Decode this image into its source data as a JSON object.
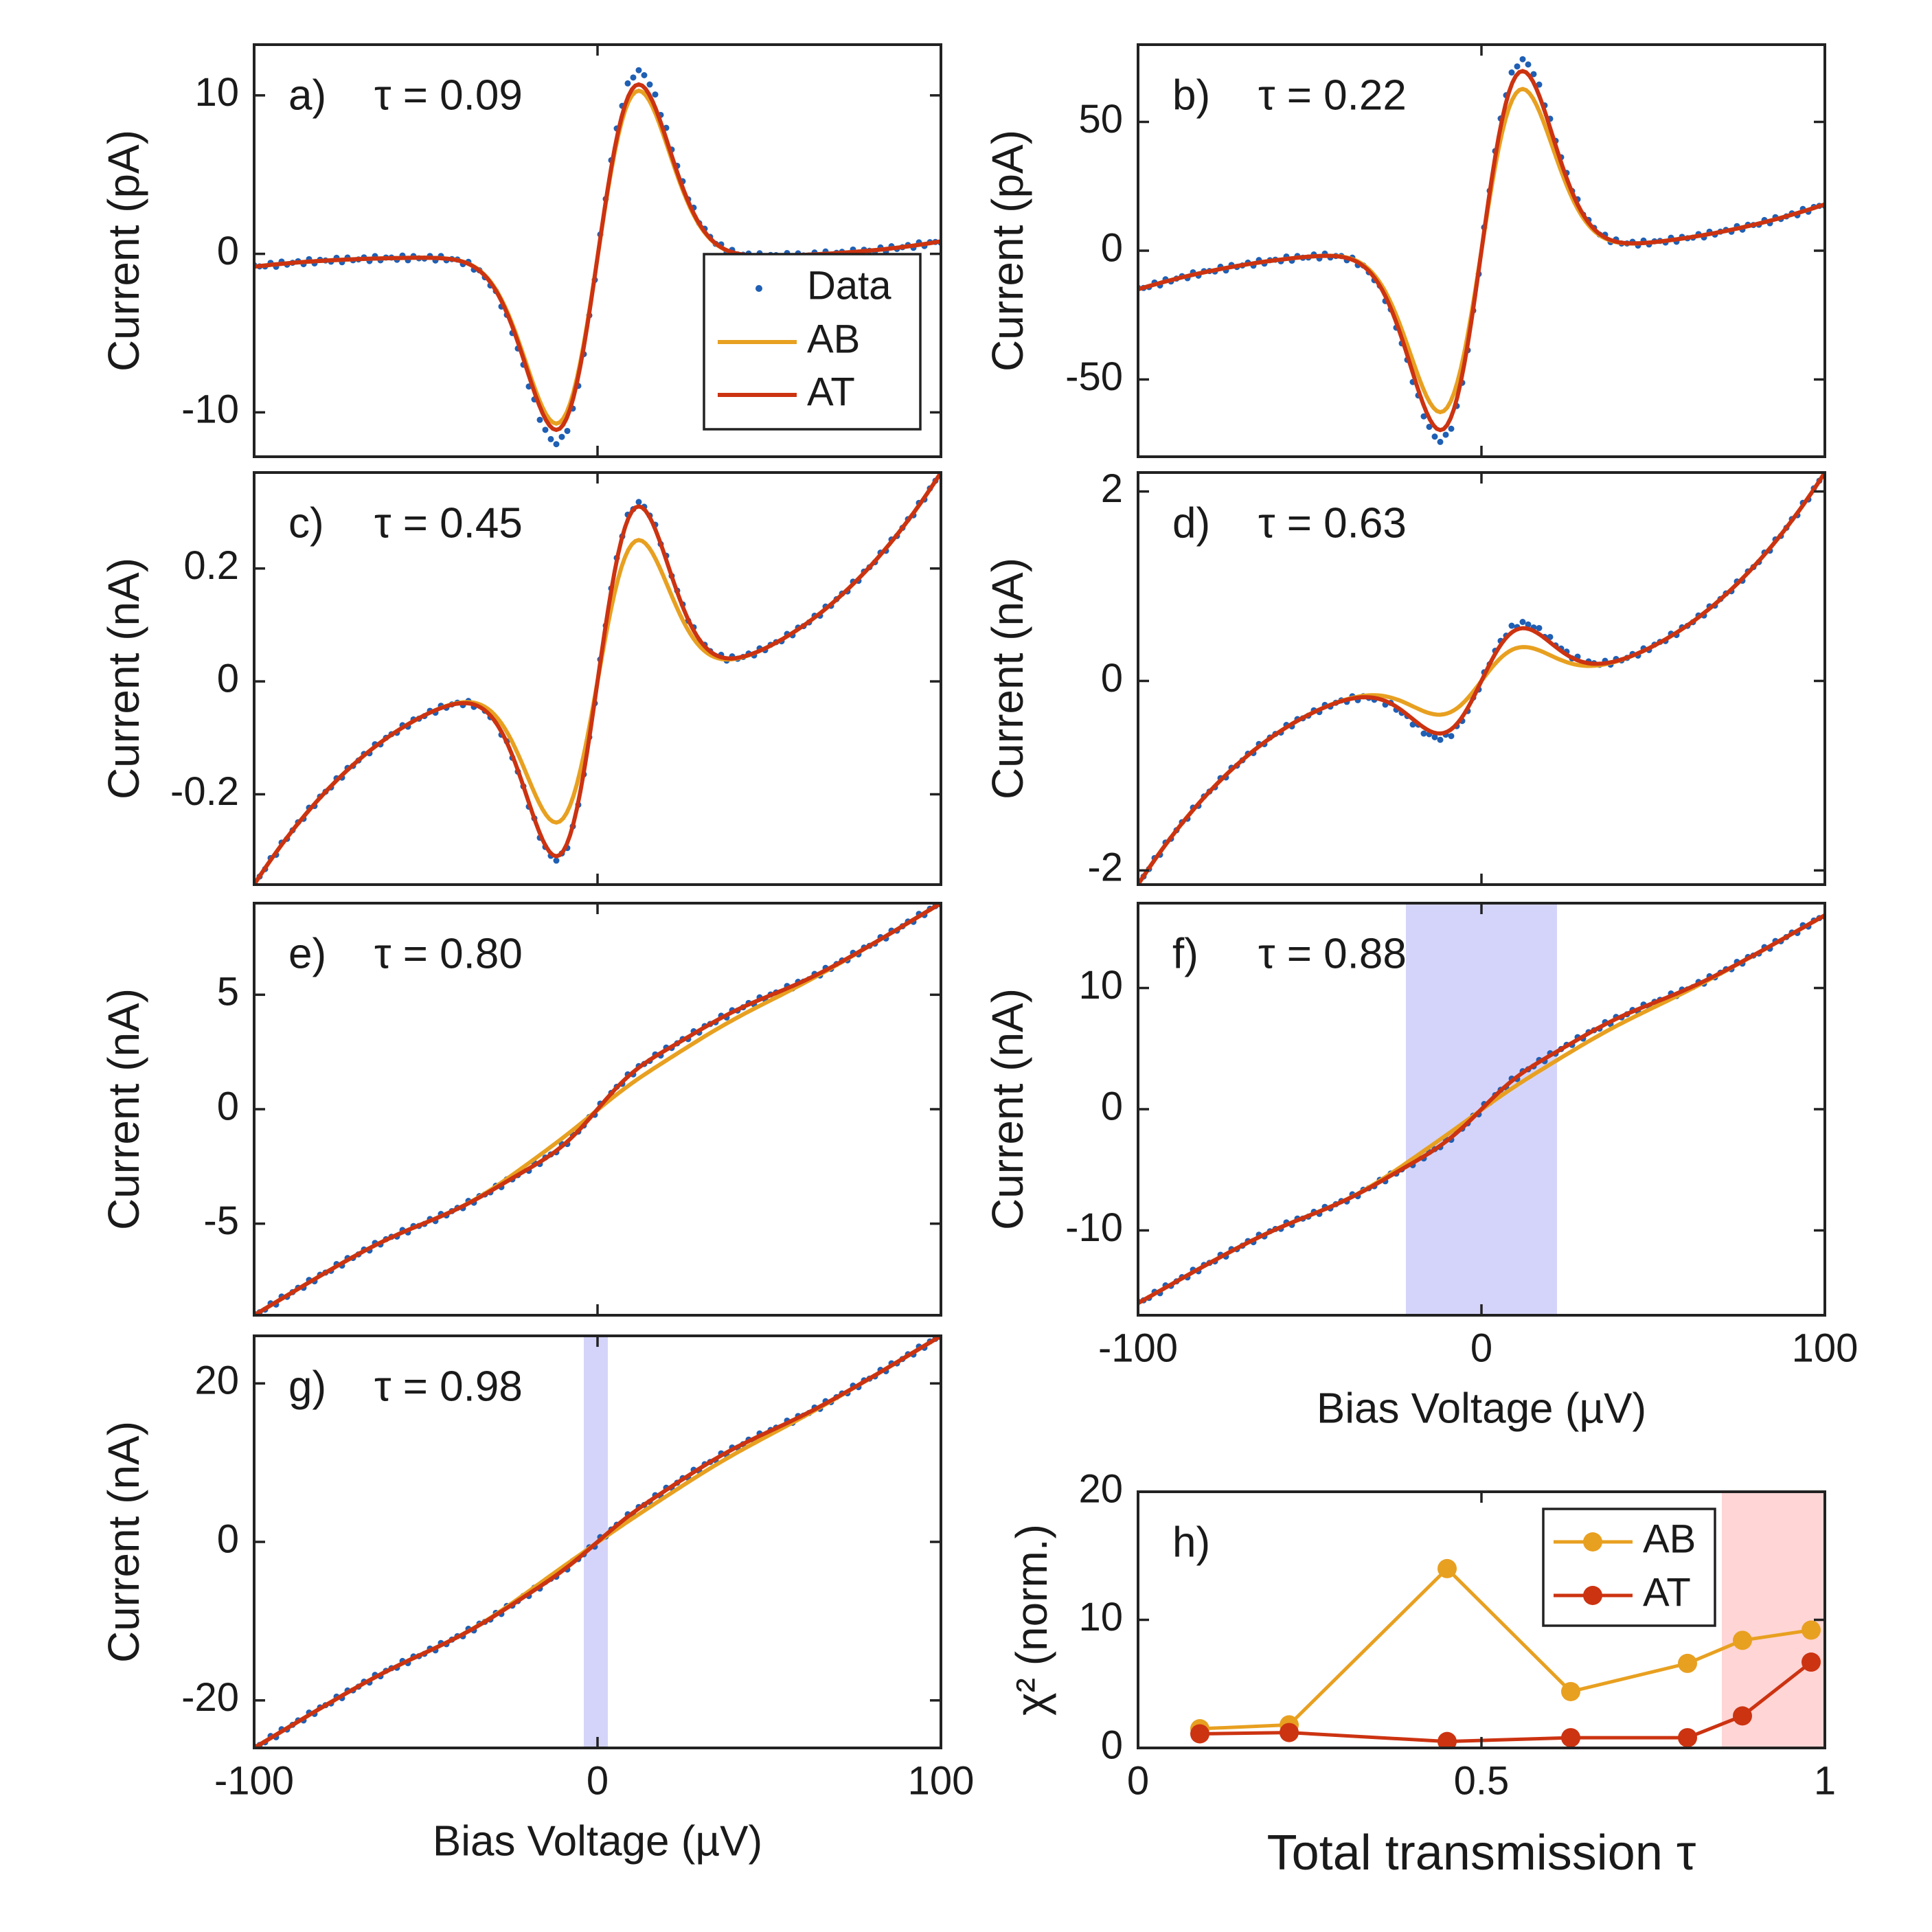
{
  "figure": {
    "colors": {
      "data": "#1f5fb4",
      "ab": "#e8a020",
      "at": "#cc3311",
      "blue_band": "#d4d4fa",
      "red_band": "#ffd5d5",
      "axis": "#222222"
    }
  },
  "chart_data": [
    {
      "id": "a",
      "type": "line",
      "panel_label": "a)",
      "tau_label": "τ = 0.09",
      "xlim": [
        -100,
        100
      ],
      "ylim": [
        -12.8,
        13.2
      ],
      "yticks": [
        -10,
        0,
        10
      ],
      "ytick_labels": [
        "-10",
        "0",
        "10"
      ],
      "xticks": [
        -100,
        0,
        100
      ],
      "xtick_labels": [],
      "ylabel": "Current (pA)",
      "xlabel": "",
      "peak": {
        "base": -0.7,
        "a_at": 10.9,
        "a_ab": 10.5,
        "a_data": 11.7,
        "w": 12,
        "left": -0.6,
        "right": 1.0,
        "curv": 0,
        "bump": 0
      },
      "legend": {
        "entries": [
          "Data",
          "AB",
          "AT"
        ],
        "placement": "lower-right"
      },
      "shaded": []
    },
    {
      "id": "b",
      "type": "line",
      "panel_label": "b)",
      "tau_label": "τ = 0.22",
      "xlim": [
        -100,
        100
      ],
      "ylim": [
        -80,
        80
      ],
      "yticks": [
        -50,
        0,
        50
      ],
      "ytick_labels": [
        "-50",
        "0",
        "50"
      ],
      "xticks": [
        -100,
        0,
        100
      ],
      "xtick_labels": [],
      "ylabel": "Current (pA)",
      "xlabel": "",
      "peak": {
        "base": 0,
        "a_at": 70,
        "a_ab": 63,
        "a_data": 74,
        "w": 12,
        "left": -15,
        "right": 18,
        "curv": 15,
        "bump": 0
      },
      "shaded": []
    },
    {
      "id": "c",
      "type": "line",
      "panel_label": "c)",
      "tau_label": "τ = 0.45",
      "xlim": [
        -100,
        100
      ],
      "ylim": [
        -0.36,
        0.37
      ],
      "yticks": [
        -0.2,
        0,
        0.2
      ],
      "ytick_labels": [
        "-0.2",
        "0",
        "0.2"
      ],
      "xticks": [
        -100,
        0,
        100
      ],
      "xtick_labels": [],
      "ylabel": "Current (nA)",
      "xlabel": "",
      "peak": {
        "base": 0,
        "a_at": 0.31,
        "a_ab": 0.25,
        "a_data": 0.315,
        "w": 12,
        "left": -0.36,
        "right": 0.37,
        "curv": 0.33,
        "bump": 0
      },
      "shaded": []
    },
    {
      "id": "d",
      "type": "line",
      "panel_label": "d)",
      "tau_label": "τ = 0.63",
      "xlim": [
        -100,
        100
      ],
      "ylim": [
        -2.15,
        2.2
      ],
      "yticks": [
        -2,
        0,
        2
      ],
      "ytick_labels": [
        "-2",
        "0",
        "2"
      ],
      "xticks": [
        -100,
        0,
        100
      ],
      "xtick_labels": [],
      "ylabel": "Current (nA)",
      "xlabel": "",
      "peak": {
        "base": 0,
        "a_at": 0.55,
        "a_ab": 0.35,
        "a_data": 0.6,
        "w": 12,
        "left": -2.15,
        "right": 2.2,
        "curv": 2.0,
        "bump": 0
      },
      "shaded": []
    },
    {
      "id": "e",
      "type": "line",
      "panel_label": "e)",
      "tau_label": "τ = 0.80",
      "xlim": [
        -100,
        100
      ],
      "ylim": [
        -9,
        9
      ],
      "yticks": [
        -5,
        0,
        5
      ],
      "ytick_labels": [
        "-5",
        "0",
        "5"
      ],
      "xticks": [
        -100,
        0,
        100
      ],
      "xtick_labels": [],
      "ylabel": "Current (nA)",
      "xlabel": "",
      "peak": {
        "base": 0,
        "a_at": 1.0,
        "a_ab": 0.5,
        "a_data": 1.0,
        "w": 12,
        "left": -9,
        "right": 9,
        "curv": 0,
        "bump": 1.2
      },
      "shaded": []
    },
    {
      "id": "f",
      "type": "line",
      "panel_label": "f)",
      "tau_label": "τ = 0.88",
      "xlim": [
        -100,
        100
      ],
      "ylim": [
        -17,
        17
      ],
      "yticks": [
        -10,
        0,
        10
      ],
      "ytick_labels": [
        "-10",
        "0",
        "10"
      ],
      "xticks": [
        -100,
        0,
        100
      ],
      "xtick_labels": [
        "-100",
        "0",
        "100"
      ],
      "ylabel": "Current (nA)",
      "xlabel": "Bias Voltage (µV)",
      "peak": {
        "base": 0,
        "a_at": 1.4,
        "a_ab": 0.6,
        "a_data": 1.4,
        "w": 12,
        "left": -16,
        "right": 16,
        "curv": 0,
        "bump": 2.0
      },
      "shaded": [
        {
          "x0": -22,
          "x1": 22,
          "color": "blue"
        }
      ]
    },
    {
      "id": "g",
      "type": "line",
      "panel_label": "g)",
      "tau_label": "τ = 0.98",
      "xlim": [
        -100,
        100
      ],
      "ylim": [
        -26,
        26
      ],
      "yticks": [
        -20,
        0,
        20
      ],
      "ytick_labels": [
        "-20",
        "0",
        "20"
      ],
      "xticks": [
        -100,
        0,
        100
      ],
      "xtick_labels": [
        "-100",
        "0",
        "100"
      ],
      "ylabel": "Current (nA)",
      "xlabel": "Bias Voltage (µV)",
      "peak": {
        "base": 0,
        "a_at": 1.2,
        "a_ab": 0.4,
        "a_data": 1.2,
        "w": 12,
        "left": -26,
        "right": 26,
        "curv": 0,
        "bump": 2.5
      },
      "shaded": [
        {
          "x0": -4,
          "x1": 3,
          "color": "blue"
        }
      ]
    },
    {
      "id": "h",
      "type": "line",
      "panel_label": "h)",
      "xlim": [
        0,
        1
      ],
      "ylim": [
        0,
        20
      ],
      "xticks": [
        0,
        0.5,
        1
      ],
      "xtick_labels": [
        "0",
        "0.5",
        "1"
      ],
      "yticks": [
        0,
        10,
        20
      ],
      "ytick_labels": [
        "0",
        "10",
        "20"
      ],
      "xlabel": "Total transmission τ",
      "ylabel": "χ² (norm.)",
      "x": [
        0.09,
        0.22,
        0.45,
        0.63,
        0.8,
        0.88,
        0.98
      ],
      "series": [
        {
          "name": "AB",
          "values": [
            1.5,
            1.8,
            14.0,
            4.4,
            6.6,
            8.4,
            9.2
          ]
        },
        {
          "name": "AT",
          "values": [
            1.1,
            1.2,
            0.5,
            0.8,
            0.8,
            2.5,
            6.7
          ]
        }
      ],
      "legend": {
        "entries": [
          "AB",
          "AT"
        ],
        "placement": "top-right"
      },
      "shaded": [
        {
          "x0": 0.85,
          "x1": 1.0,
          "color": "red"
        }
      ]
    }
  ]
}
